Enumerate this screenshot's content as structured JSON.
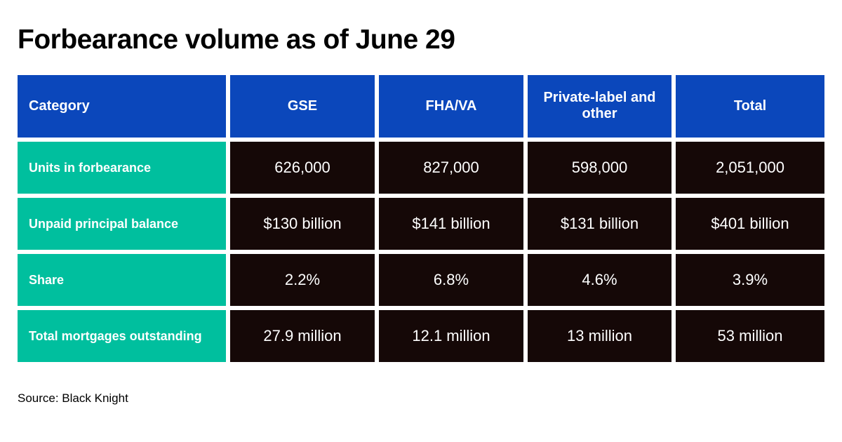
{
  "page": {
    "title": "Forbearance volume as of June 29",
    "source": "Source: Black Knight"
  },
  "colors": {
    "header_blue": "#0b47bb",
    "category_teal": "#00bf9e",
    "cell_dark": "#150807",
    "cell_text": "#ffffff",
    "page_text": "#000000",
    "background": "#ffffff"
  },
  "chart_data": {
    "type": "table",
    "title": "Forbearance volume as of June 29",
    "columns": [
      "Category",
      "GSE",
      "FHA/VA",
      "Private-label and other",
      "Total"
    ],
    "rows": [
      {
        "category": "Units in forbearance",
        "values": [
          "626,000",
          "827,000",
          "598,000",
          "2,051,000"
        ]
      },
      {
        "category": "Unpaid principal balance",
        "values": [
          "$130 billion",
          "$141 billion",
          "$131 billion",
          "$401 billion"
        ]
      },
      {
        "category": "Share",
        "values": [
          "2.2%",
          "6.8%",
          "4.6%",
          "3.9%"
        ]
      },
      {
        "category": "Total mortgages outstanding",
        "values": [
          "27.9 million",
          "12.1 million",
          "13 million",
          "53 million"
        ]
      }
    ],
    "source": "Source: Black Knight",
    "layout": {
      "header_text_color": "#ffffff",
      "grid": "off",
      "legend": "none",
      "first_column_align": "left",
      "value_align": "center"
    }
  }
}
